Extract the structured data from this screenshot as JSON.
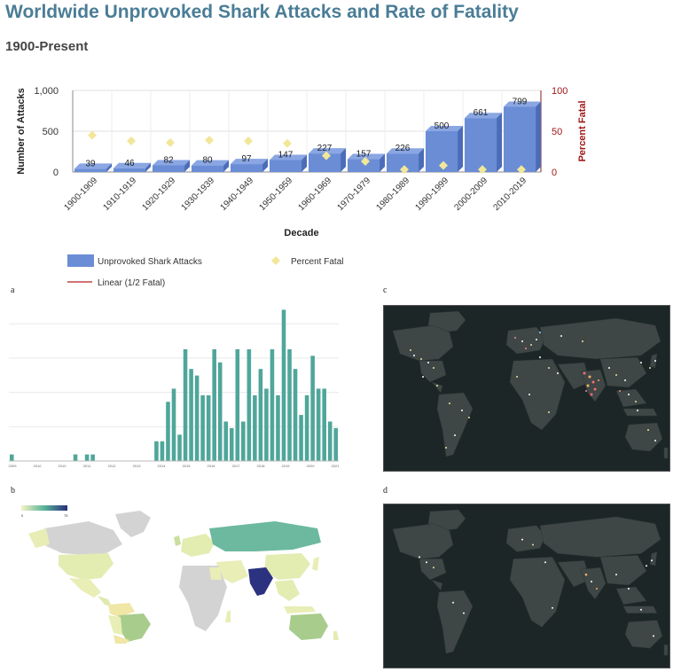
{
  "header": {
    "title": "Worldwide Unprovoked Shark Attacks and Rate of Fatality",
    "subtitle": "1900-Present"
  },
  "chart_data": [
    {
      "type": "bar",
      "xlabel": "Decade",
      "ylabel": "Number of Attacks",
      "y2label": "Percent Fatal",
      "ylim": [
        0,
        1000
      ],
      "y2lim": [
        0,
        100
      ],
      "yticks": [
        "0",
        "500",
        "1,000"
      ],
      "y2ticks": [
        "0",
        "50",
        "100"
      ],
      "categories": [
        "1900-1909",
        "1910-1919",
        "1920-1929",
        "1930-1939",
        "1940-1949",
        "1950-1959",
        "1960-1969",
        "1970-1979",
        "1980-1989",
        "1990-1999",
        "2000-2009",
        "2010-2019"
      ],
      "series": [
        {
          "name": "Unprovoked Shark Attacks",
          "type": "bar",
          "color": "#6a8dd6",
          "values": [
            39,
            46,
            82,
            80,
            97,
            147,
            227,
            157,
            226,
            500,
            661,
            799
          ]
        },
        {
          "name": "Percent Fatal",
          "type": "scatter",
          "color": "#f2e699",
          "values": [
            45,
            38,
            36,
            39,
            38,
            35,
            20,
            13,
            3,
            8,
            3,
            3
          ]
        }
      ],
      "legend": [
        {
          "label": "Unprovoked Shark Attacks",
          "kind": "bar",
          "color": "#6a8dd6"
        },
        {
          "label": "Percent Fatal",
          "kind": "diamond",
          "color": "#f2e699"
        },
        {
          "label": "Linear (1/2 Fatal)",
          "kind": "line",
          "color": "#b22222"
        }
      ],
      "legend_position": "bottom"
    },
    {
      "type": "bar",
      "panel": "a",
      "color": "#4fa69a",
      "values": [
        1,
        0,
        0,
        0,
        0,
        0,
        0,
        0,
        0,
        0,
        0,
        1,
        0,
        1,
        1,
        0,
        0,
        0,
        0,
        0,
        0,
        0,
        0,
        0,
        0,
        3,
        3,
        9,
        11,
        4,
        17,
        14,
        13,
        10,
        10,
        17,
        15,
        6,
        5,
        17,
        6,
        17,
        10,
        14,
        11,
        17,
        10,
        23,
        17,
        14,
        7,
        10,
        16,
        11,
        11,
        6,
        5
      ]
    }
  ],
  "panels": {
    "a": {
      "label": "a",
      "xticks": [
        "2009",
        "2010",
        "2010",
        "2011",
        "2012",
        "2013",
        "2014",
        "2015",
        "2016",
        "2017",
        "2018",
        "2019",
        "2020",
        "2021"
      ]
    },
    "b": {
      "label": "b",
      "scale_min": "0",
      "scale_max": "75"
    },
    "c": {
      "label": "c"
    },
    "d": {
      "label": "d"
    }
  }
}
